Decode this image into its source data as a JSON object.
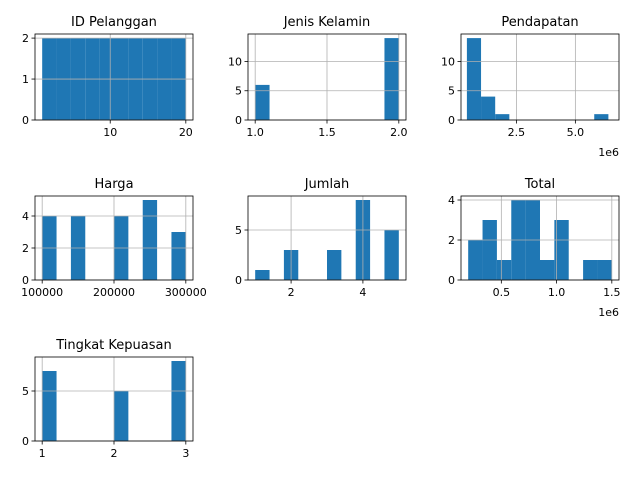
{
  "chart_data": [
    {
      "type": "bar",
      "title": "ID Pelanggan",
      "xlim": [
        0.05,
        20.95
      ],
      "ylim": [
        0,
        2.1
      ],
      "xticks": [
        10,
        20
      ],
      "xtick_labels": [
        "10",
        "20"
      ],
      "yticks": [
        0,
        1,
        2
      ],
      "ytick_labels": [
        "0",
        "1",
        "2"
      ],
      "grid": true,
      "bins": [
        [
          1,
          2.9
        ],
        [
          2.9,
          4.8
        ],
        [
          4.8,
          6.7
        ],
        [
          6.7,
          8.6
        ],
        [
          8.6,
          10.5
        ],
        [
          10.5,
          12.4
        ],
        [
          12.4,
          14.3
        ],
        [
          14.3,
          16.2
        ],
        [
          16.2,
          18.1
        ],
        [
          18.1,
          20
        ]
      ],
      "counts": [
        2,
        2,
        2,
        2,
        2,
        2,
        2,
        2,
        2,
        2
      ]
    },
    {
      "type": "bar",
      "title": "Jenis Kelamin",
      "xlim": [
        0.95,
        2.05
      ],
      "ylim": [
        0,
        14.7
      ],
      "xticks": [
        1.0,
        1.5,
        2.0
      ],
      "xtick_labels": [
        "1.0",
        "1.5",
        "2.0"
      ],
      "yticks": [
        0,
        5,
        10
      ],
      "ytick_labels": [
        "0",
        "5",
        "10"
      ],
      "grid": true,
      "bins": [
        [
          1.0,
          1.1
        ],
        [
          1.1,
          1.2
        ],
        [
          1.2,
          1.3
        ],
        [
          1.3,
          1.4
        ],
        [
          1.4,
          1.5
        ],
        [
          1.5,
          1.6
        ],
        [
          1.6,
          1.7
        ],
        [
          1.7,
          1.8
        ],
        [
          1.8,
          1.9
        ],
        [
          1.9,
          2.0
        ]
      ],
      "counts": [
        6,
        0,
        0,
        0,
        0,
        0,
        0,
        0,
        0,
        14
      ]
    },
    {
      "type": "bar",
      "title": "Pendapatan",
      "xlim": [
        0.15,
        6.85
      ],
      "ylim": [
        0,
        14.7
      ],
      "xticks": [
        2.5,
        5.0
      ],
      "xtick_labels": [
        "2.5",
        "5.0"
      ],
      "yticks": [
        0,
        5,
        10
      ],
      "ytick_labels": [
        "0",
        "5",
        "10"
      ],
      "offset_label": "1e6",
      "grid": true,
      "bins": [
        [
          0.4,
          1.0
        ],
        [
          1.0,
          1.6
        ],
        [
          1.6,
          2.2
        ],
        [
          2.2,
          2.8
        ],
        [
          2.8,
          3.4
        ],
        [
          3.4,
          4.0
        ],
        [
          4.0,
          4.6
        ],
        [
          4.6,
          5.2
        ],
        [
          5.2,
          5.8
        ],
        [
          5.8,
          6.4
        ]
      ],
      "counts": [
        14,
        4,
        1,
        0,
        0,
        0,
        0,
        0,
        0,
        1
      ]
    },
    {
      "type": "bar",
      "title": "Harga",
      "xlim": [
        90000,
        310000
      ],
      "ylim": [
        0,
        5.25
      ],
      "xticks": [
        100000,
        200000,
        300000
      ],
      "xtick_labels": [
        "100000",
        "200000",
        "300000"
      ],
      "yticks": [
        0,
        2,
        4
      ],
      "ytick_labels": [
        "0",
        "2",
        "4"
      ],
      "grid": true,
      "bins": [
        [
          100000,
          120000
        ],
        [
          120000,
          140000
        ],
        [
          140000,
          160000
        ],
        [
          160000,
          180000
        ],
        [
          180000,
          200000
        ],
        [
          200000,
          220000
        ],
        [
          220000,
          240000
        ],
        [
          240000,
          260000
        ],
        [
          260000,
          280000
        ],
        [
          280000,
          300000
        ]
      ],
      "counts": [
        4,
        0,
        4,
        0,
        0,
        4,
        0,
        5,
        0,
        3
      ]
    },
    {
      "type": "bar",
      "title": "Jumlah",
      "xlim": [
        0.8,
        5.2
      ],
      "ylim": [
        0,
        8.4
      ],
      "xticks": [
        2,
        4
      ],
      "xtick_labels": [
        "2",
        "4"
      ],
      "yticks": [
        0,
        5
      ],
      "ytick_labels": [
        "0",
        "5"
      ],
      "grid": true,
      "bins": [
        [
          1.0,
          1.4
        ],
        [
          1.4,
          1.8
        ],
        [
          1.8,
          2.2
        ],
        [
          2.2,
          2.6
        ],
        [
          2.6,
          3.0
        ],
        [
          3.0,
          3.4
        ],
        [
          3.4,
          3.8
        ],
        [
          3.8,
          4.2
        ],
        [
          4.2,
          4.6
        ],
        [
          4.6,
          5.0
        ]
      ],
      "counts": [
        1,
        0,
        3,
        0,
        0,
        3,
        0,
        8,
        0,
        5
      ]
    },
    {
      "type": "bar",
      "title": "Total",
      "xlim": [
        0.135,
        1.565
      ],
      "ylim": [
        0,
        4.2
      ],
      "xticks": [
        0.5,
        1.0,
        1.5
      ],
      "xtick_labels": [
        "0.5",
        "1.0",
        "1.5"
      ],
      "yticks": [
        0,
        2,
        4
      ],
      "ytick_labels": [
        "0",
        "2",
        "4"
      ],
      "offset_label": "1e6",
      "grid": true,
      "bins": [
        [
          0.2,
          0.33
        ],
        [
          0.33,
          0.46
        ],
        [
          0.46,
          0.59
        ],
        [
          0.59,
          0.72
        ],
        [
          0.72,
          0.85
        ],
        [
          0.85,
          0.98
        ],
        [
          0.98,
          1.11
        ],
        [
          1.11,
          1.24
        ],
        [
          1.24,
          1.37
        ],
        [
          1.37,
          1.5
        ]
      ],
      "counts": [
        2,
        3,
        1,
        4,
        4,
        1,
        3,
        0,
        1,
        1
      ]
    },
    {
      "type": "bar",
      "title": "Tingkat Kepuasan",
      "xlim": [
        0.9,
        3.1
      ],
      "ylim": [
        0,
        8.4
      ],
      "xticks": [
        1,
        2,
        3
      ],
      "xtick_labels": [
        "1",
        "2",
        "3"
      ],
      "yticks": [
        0,
        5
      ],
      "ytick_labels": [
        "0",
        "5"
      ],
      "grid": true,
      "bins": [
        [
          1.0,
          1.2
        ],
        [
          1.2,
          1.4
        ],
        [
          1.4,
          1.6
        ],
        [
          1.6,
          1.8
        ],
        [
          1.8,
          2.0
        ],
        [
          2.0,
          2.2
        ],
        [
          2.2,
          2.4
        ],
        [
          2.4,
          2.6
        ],
        [
          2.6,
          2.8
        ],
        [
          2.8,
          3.0
        ]
      ],
      "counts": [
        7,
        0,
        0,
        0,
        0,
        5,
        0,
        0,
        0,
        8
      ]
    }
  ],
  "colors": {
    "bar": "#1f77b4",
    "grid": "#b0b0b0",
    "axis": "#000000"
  }
}
